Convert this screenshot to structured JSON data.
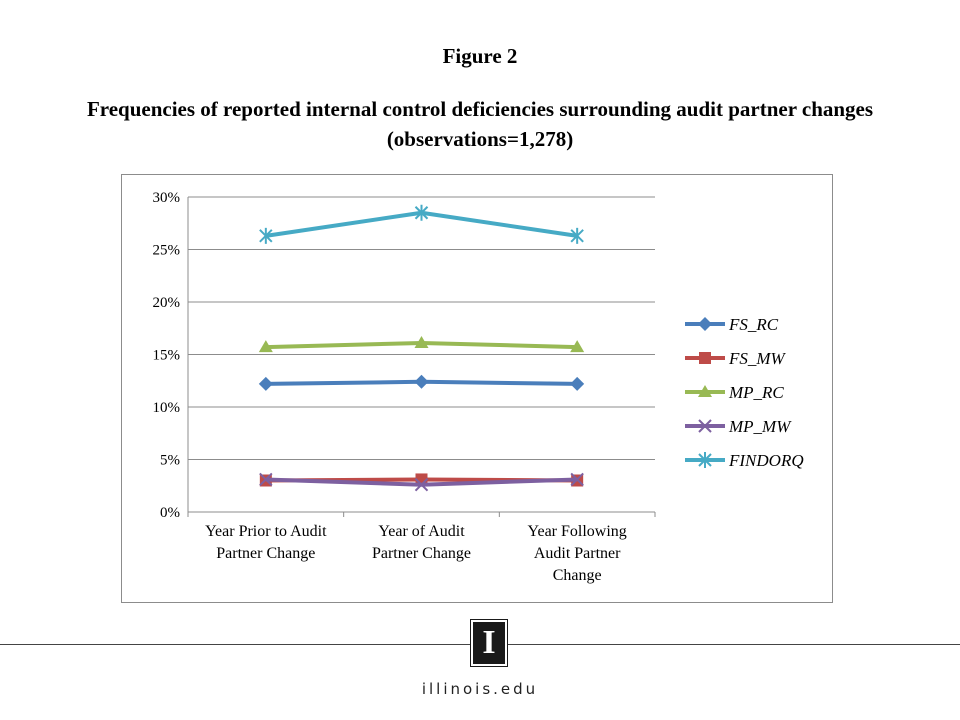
{
  "figure_label": "Figure 2",
  "title_line1": "Frequencies of reported internal control deficiencies surrounding audit partner changes",
  "title_line2": "(observations=1,278)",
  "footer": {
    "logo_letter": "I",
    "site": "illinois.edu"
  },
  "chart_data": {
    "type": "line",
    "categories": [
      [
        "Year Prior to Audit",
        "Partner Change"
      ],
      [
        "Year of Audit",
        "Partner  Change"
      ],
      [
        "Year Following",
        "Audit Partner",
        "Change"
      ]
    ],
    "ylim": [
      0,
      30
    ],
    "yticks": [
      0,
      5,
      10,
      15,
      20,
      25,
      30
    ],
    "ytick_labels": [
      "0%",
      "5%",
      "10%",
      "15%",
      "20%",
      "25%",
      "30%"
    ],
    "grid": true,
    "legend_position": "right",
    "series": [
      {
        "name": "FS_RC",
        "values": [
          12.2,
          12.4,
          12.2
        ],
        "color": "#4a7ebb",
        "marker": "diamond"
      },
      {
        "name": "FS_MW",
        "values": [
          3.0,
          3.1,
          3.0
        ],
        "color": "#be4b48",
        "marker": "square"
      },
      {
        "name": "MP_RC",
        "values": [
          15.7,
          16.1,
          15.7
        ],
        "color": "#98b954",
        "marker": "triangle"
      },
      {
        "name": "MP_MW",
        "values": [
          3.1,
          2.6,
          3.1
        ],
        "color": "#7d60a0",
        "marker": "x"
      },
      {
        "name": "FINDORQ",
        "values": [
          26.3,
          28.5,
          26.3
        ],
        "color": "#46aac5",
        "marker": "star"
      }
    ]
  }
}
